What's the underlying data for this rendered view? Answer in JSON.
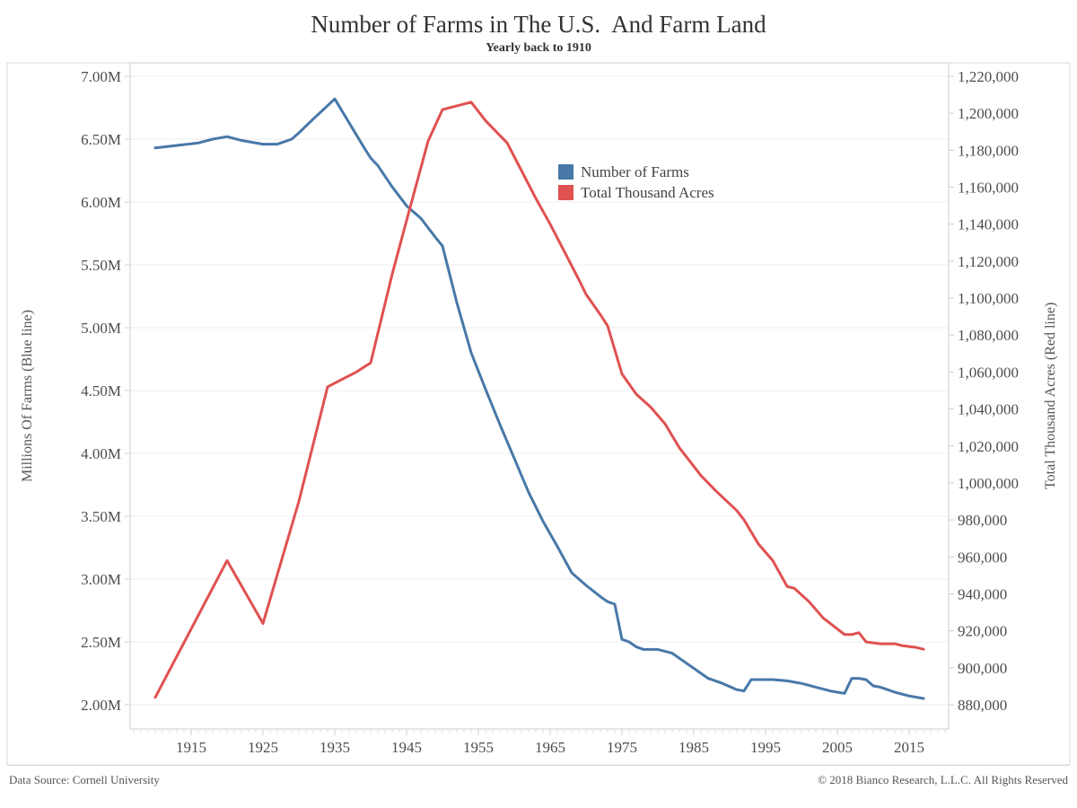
{
  "title": "Number of Farms in The U.S.  And Farm Land",
  "subtitle": "Yearly back to 1910",
  "footer": {
    "source": "Data Source: Cornell University",
    "copyright": "© 2018 Bianco Research, L.L.C. All Rights Reserved"
  },
  "colors": {
    "farms_line": "#4878a8",
    "acres_line": "#e05151",
    "grid": "#ececec",
    "frame": "#d9d9d9",
    "plot_border": "#cfcfcf",
    "tick_text": "#4d4d4d"
  },
  "legend": {
    "items": [
      {
        "label": "Number of Farms",
        "color": "#4878a8"
      },
      {
        "label": "Total Thousand Acres",
        "color": "#e05151"
      }
    ]
  },
  "chart_data": {
    "type": "line",
    "title": "Number of Farms in The U.S.  And Farm Land",
    "subtitle": "Yearly back to 1910",
    "x_domain": [
      1906.5,
      2020.5
    ],
    "x_ticks": [
      1915,
      1925,
      1935,
      1945,
      1955,
      1965,
      1975,
      1985,
      1995,
      2005,
      2015
    ],
    "x_minor_tick_range": [
      1907,
      2020
    ],
    "left_axis": {
      "label": "Millions Of Farms (Blue line)",
      "tick_values": [
        7.0,
        6.5,
        6.0,
        5.5,
        5.0,
        4.5,
        4.0,
        3.5,
        3.0,
        2.5,
        2.0
      ],
      "tick_labels": [
        "7.00M",
        "6.50M",
        "6.00M",
        "5.50M",
        "5.00M",
        "4.50M",
        "4.00M",
        "3.50M",
        "3.00M",
        "2.50M",
        "2.00M"
      ]
    },
    "right_axis": {
      "label": "Total Thousand Acres (Red line)",
      "tick_values": [
        1220000,
        1200000,
        1180000,
        1160000,
        1140000,
        1120000,
        1100000,
        1080000,
        1060000,
        1040000,
        1020000,
        1000000,
        980000,
        960000,
        940000,
        920000,
        900000,
        880000
      ],
      "tick_labels": [
        "1,220,000",
        "1,200,000",
        "1,180,000",
        "1,160,000",
        "1,140,000",
        "1,120,000",
        "1,100,000",
        "1,080,000",
        "1,060,000",
        "1,040,000",
        "1,020,000",
        "1,000,000",
        "980,000",
        "960,000",
        "940,000",
        "920,000",
        "900,000",
        "880,000"
      ]
    },
    "series": [
      {
        "name": "Number of Farms",
        "yaxis": "left",
        "unit": "millions of farms",
        "color": "#4878a8",
        "points": [
          [
            1910,
            6.43
          ],
          [
            1913,
            6.45
          ],
          [
            1916,
            6.47
          ],
          [
            1918,
            6.5
          ],
          [
            1920,
            6.52
          ],
          [
            1922,
            6.49
          ],
          [
            1925,
            6.46
          ],
          [
            1927,
            6.46
          ],
          [
            1929,
            6.5
          ],
          [
            1930,
            6.55
          ],
          [
            1932,
            6.66
          ],
          [
            1935,
            6.82
          ],
          [
            1937,
            6.63
          ],
          [
            1939,
            6.44
          ],
          [
            1940,
            6.35
          ],
          [
            1941,
            6.29
          ],
          [
            1943,
            6.12
          ],
          [
            1945,
            5.97
          ],
          [
            1947,
            5.87
          ],
          [
            1949,
            5.72
          ],
          [
            1950,
            5.65
          ],
          [
            1952,
            5.2
          ],
          [
            1954,
            4.8
          ],
          [
            1956,
            4.51
          ],
          [
            1958,
            4.23
          ],
          [
            1960,
            3.96
          ],
          [
            1962,
            3.69
          ],
          [
            1964,
            3.46
          ],
          [
            1966,
            3.26
          ],
          [
            1968,
            3.05
          ],
          [
            1970,
            2.95
          ],
          [
            1972,
            2.86
          ],
          [
            1973,
            2.82
          ],
          [
            1974,
            2.8
          ],
          [
            1975,
            2.52
          ],
          [
            1976,
            2.5
          ],
          [
            1977,
            2.46
          ],
          [
            1978,
            2.44
          ],
          [
            1980,
            2.44
          ],
          [
            1982,
            2.41
          ],
          [
            1984,
            2.33
          ],
          [
            1985,
            2.29
          ],
          [
            1987,
            2.21
          ],
          [
            1989,
            2.17
          ],
          [
            1991,
            2.12
          ],
          [
            1992,
            2.11
          ],
          [
            1993,
            2.2
          ],
          [
            1996,
            2.2
          ],
          [
            1998,
            2.19
          ],
          [
            2000,
            2.17
          ],
          [
            2002,
            2.14
          ],
          [
            2004,
            2.11
          ],
          [
            2006,
            2.09
          ],
          [
            2007,
            2.21
          ],
          [
            2008,
            2.21
          ],
          [
            2009,
            2.2
          ],
          [
            2010,
            2.15
          ],
          [
            2011,
            2.14
          ],
          [
            2013,
            2.1
          ],
          [
            2015,
            2.07
          ],
          [
            2017,
            2.05
          ]
        ]
      },
      {
        "name": "Total Thousand Acres",
        "yaxis": "right",
        "unit": "thousand acres",
        "color": "#e05151",
        "points": [
          [
            1910,
            884000
          ],
          [
            1920,
            958000
          ],
          [
            1925,
            924000
          ],
          [
            1930,
            990000
          ],
          [
            1934,
            1052000
          ],
          [
            1936,
            1056000
          ],
          [
            1938,
            1060000
          ],
          [
            1940,
            1065000
          ],
          [
            1943,
            1113000
          ],
          [
            1945,
            1142000
          ],
          [
            1948,
            1185000
          ],
          [
            1950,
            1202000
          ],
          [
            1952,
            1204000
          ],
          [
            1954,
            1206000
          ],
          [
            1956,
            1196000
          ],
          [
            1958,
            1188000
          ],
          [
            1959,
            1184000
          ],
          [
            1961,
            1169000
          ],
          [
            1963,
            1154000
          ],
          [
            1965,
            1140000
          ],
          [
            1967,
            1125000
          ],
          [
            1969,
            1110000
          ],
          [
            1970,
            1102000
          ],
          [
            1972,
            1091000
          ],
          [
            1973,
            1085000
          ],
          [
            1975,
            1059000
          ],
          [
            1977,
            1048000
          ],
          [
            1979,
            1041000
          ],
          [
            1981,
            1032000
          ],
          [
            1983,
            1019000
          ],
          [
            1986,
            1004000
          ],
          [
            1988,
            996000
          ],
          [
            1991,
            985000
          ],
          [
            1992,
            980000
          ],
          [
            1994,
            967000
          ],
          [
            1996,
            958000
          ],
          [
            1998,
            944000
          ],
          [
            1999,
            943000
          ],
          [
            2001,
            936000
          ],
          [
            2003,
            927000
          ],
          [
            2005,
            921000
          ],
          [
            2006,
            918000
          ],
          [
            2007,
            918000
          ],
          [
            2008,
            919000
          ],
          [
            2009,
            914000
          ],
          [
            2011,
            913000
          ],
          [
            2013,
            913000
          ],
          [
            2014,
            912000
          ],
          [
            2016,
            911000
          ],
          [
            2017,
            910000
          ]
        ]
      }
    ]
  }
}
